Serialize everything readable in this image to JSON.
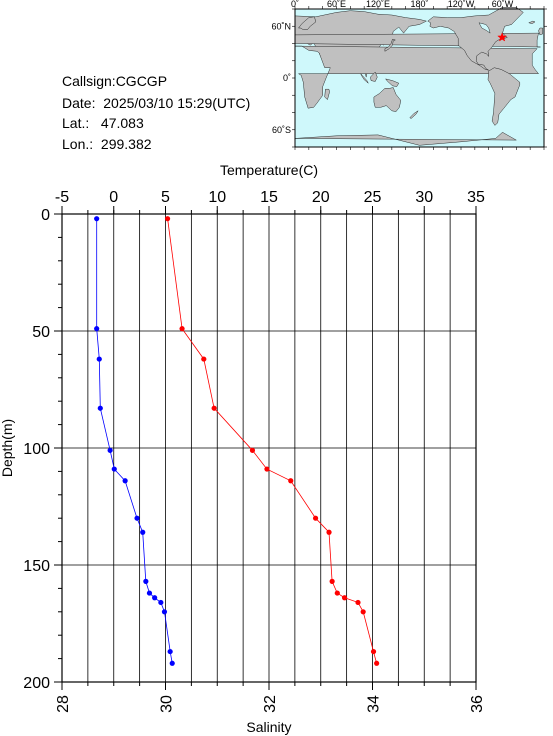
{
  "station": {
    "callsign": "Callsign:CGCGP",
    "date": "Date:  2025/03/10 15:29(UTC)",
    "lat": "Lat.:   47.083",
    "lon": "Lon.:  299.382"
  },
  "map": {
    "lon_labels": [
      "0˚",
      "60˚E",
      "120˚E",
      "180˚",
      "120˚W",
      "60˚W"
    ],
    "lat_labels": [
      "60˚N",
      "0˚",
      "60˚S"
    ],
    "ocean_color": "#cff8fb",
    "land_color": "#c0c0c0",
    "marker_color": "#ff0000"
  },
  "chart_data": {
    "type": "line",
    "y": {
      "label": "Depth(m)",
      "range": [
        0,
        200
      ],
      "inverted": true,
      "ticks": [
        0,
        50,
        100,
        150,
        200
      ]
    },
    "x_top": {
      "label": "Temperature(C)",
      "range": [
        -5,
        35
      ],
      "ticks": [
        -5,
        0,
        5,
        10,
        15,
        20,
        25,
        30,
        35
      ]
    },
    "x_bottom": {
      "label": "Salinity",
      "range": [
        28,
        36
      ],
      "ticks": [
        28,
        30,
        32,
        34,
        36
      ]
    },
    "grid": true,
    "series": [
      {
        "axis": "x_top",
        "color": "#ff0000",
        "points": [
          {
            "x": 5.2,
            "y": 2
          },
          {
            "x": 6.6,
            "y": 49
          },
          {
            "x": 8.7,
            "y": 62
          },
          {
            "x": 9.7,
            "y": 83
          },
          {
            "x": 13.4,
            "y": 101
          },
          {
            "x": 14.8,
            "y": 109
          },
          {
            "x": 17.1,
            "y": 114
          },
          {
            "x": 19.5,
            "y": 130
          },
          {
            "x": 20.8,
            "y": 136
          },
          {
            "x": 21.1,
            "y": 157
          },
          {
            "x": 21.6,
            "y": 162
          },
          {
            "x": 22.3,
            "y": 164
          },
          {
            "x": 23.6,
            "y": 166
          },
          {
            "x": 24.1,
            "y": 170
          },
          {
            "x": 25.1,
            "y": 187
          },
          {
            "x": 25.4,
            "y": 192
          }
        ]
      },
      {
        "axis": "x_bottom",
        "color": "#0000ff",
        "points": [
          {
            "x": 28.67,
            "y": 2
          },
          {
            "x": 28.67,
            "y": 49
          },
          {
            "x": 28.72,
            "y": 62
          },
          {
            "x": 28.74,
            "y": 83
          },
          {
            "x": 28.93,
            "y": 101
          },
          {
            "x": 29.01,
            "y": 109
          },
          {
            "x": 29.22,
            "y": 114
          },
          {
            "x": 29.45,
            "y": 130
          },
          {
            "x": 29.56,
            "y": 136
          },
          {
            "x": 29.62,
            "y": 157
          },
          {
            "x": 29.69,
            "y": 162
          },
          {
            "x": 29.79,
            "y": 164
          },
          {
            "x": 29.91,
            "y": 166
          },
          {
            "x": 29.98,
            "y": 170
          },
          {
            "x": 30.09,
            "y": 187
          },
          {
            "x": 30.13,
            "y": 192
          }
        ]
      }
    ]
  }
}
